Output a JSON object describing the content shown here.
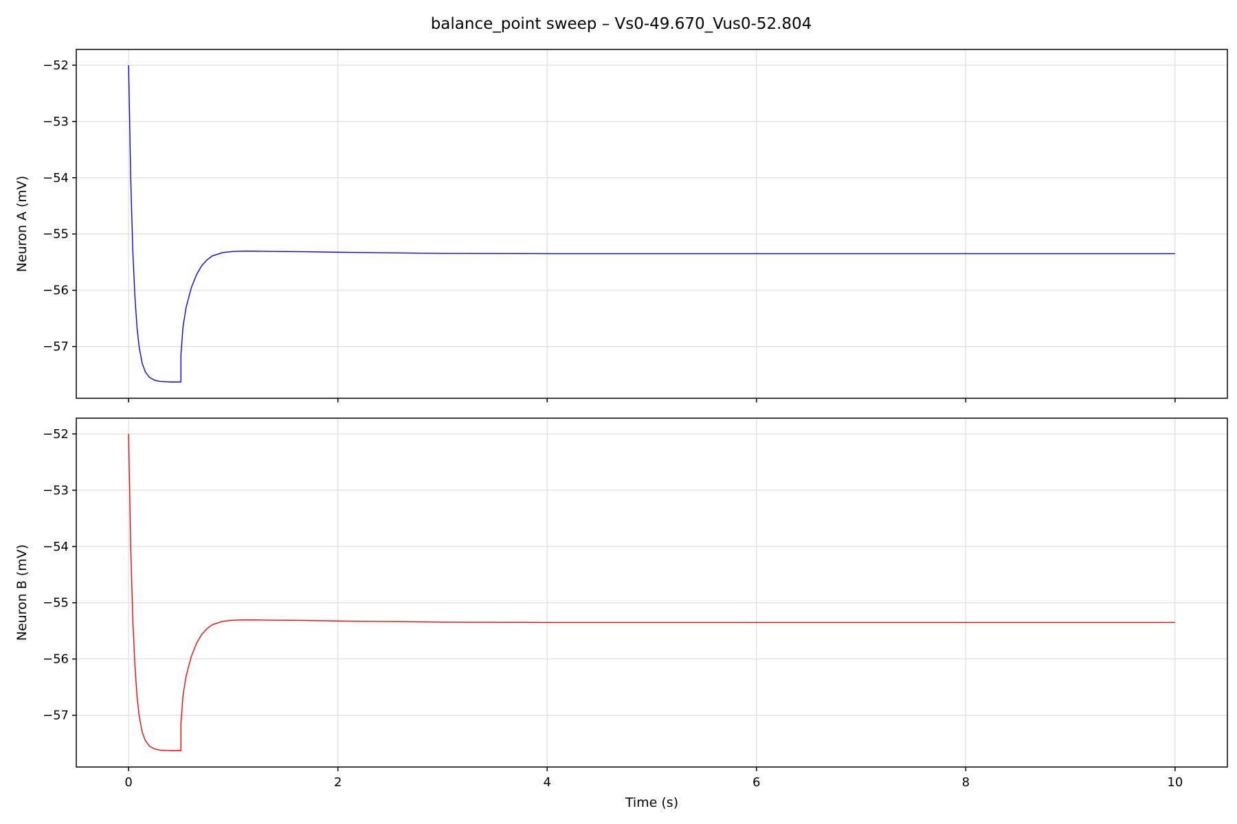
{
  "figure": {
    "title": "balance_point sweep – Vs0-49.670_Vus0-52.804"
  },
  "chart_data": [
    {
      "type": "line",
      "title": "",
      "xlabel": "",
      "ylabel": "Neuron A (mV)",
      "xlim": [
        -0.5,
        10.5
      ],
      "ylim": [
        -57.92,
        -51.72
      ],
      "x_ticks": [
        0,
        2,
        4,
        6,
        8,
        10
      ],
      "x_tick_labels": [
        "",
        "",
        "",
        "",
        "",
        ""
      ],
      "y_ticks": [
        -57,
        -56,
        -55,
        -54,
        -53,
        -52
      ],
      "y_tick_labels": [
        "−57",
        "−56",
        "−55",
        "−54",
        "−53",
        "−52"
      ],
      "grid": true,
      "series": [
        {
          "color": "#0000ff",
          "x": [
            0,
            0.02,
            0.04,
            0.06,
            0.08,
            0.1,
            0.13,
            0.16,
            0.2,
            0.25,
            0.3,
            0.35,
            0.4,
            0.45,
            0.5,
            0.5,
            0.52,
            0.55,
            0.6,
            0.65,
            0.7,
            0.75,
            0.8,
            0.9,
            1.0,
            1.1,
            1.2,
            1.4,
            1.7,
            2.0,
            2.5,
            3.0,
            4.0,
            5.0,
            6.0,
            7.0,
            8.0,
            9.0,
            10.0
          ],
          "y": [
            -52.0,
            -54.0,
            -55.3,
            -56.1,
            -56.65,
            -57.0,
            -57.3,
            -57.45,
            -57.55,
            -57.6,
            -57.62,
            -57.625,
            -57.63,
            -57.63,
            -57.63,
            -57.15,
            -56.65,
            -56.3,
            -55.95,
            -55.72,
            -55.56,
            -55.46,
            -55.39,
            -55.33,
            -55.31,
            -55.305,
            -55.305,
            -55.31,
            -55.315,
            -55.325,
            -55.335,
            -55.345,
            -55.35,
            -55.35,
            -55.35,
            -55.35,
            -55.35,
            -55.35,
            -55.35
          ]
        }
      ]
    },
    {
      "type": "line",
      "title": "",
      "xlabel": "Time (s)",
      "ylabel": "Neuron B (mV)",
      "xlim": [
        -0.5,
        10.5
      ],
      "ylim": [
        -57.92,
        -51.72
      ],
      "x_ticks": [
        0,
        2,
        4,
        6,
        8,
        10
      ],
      "x_tick_labels": [
        "0",
        "2",
        "4",
        "6",
        "8",
        "10"
      ],
      "y_ticks": [
        -57,
        -56,
        -55,
        -54,
        -53,
        -52
      ],
      "y_tick_labels": [
        "−57",
        "−56",
        "−55",
        "−54",
        "−53",
        "−52"
      ],
      "grid": true,
      "series": [
        {
          "color": "#ff0000",
          "x": [
            0,
            0.02,
            0.04,
            0.06,
            0.08,
            0.1,
            0.13,
            0.16,
            0.2,
            0.25,
            0.3,
            0.35,
            0.4,
            0.45,
            0.5,
            0.5,
            0.52,
            0.55,
            0.6,
            0.65,
            0.7,
            0.75,
            0.8,
            0.9,
            1.0,
            1.1,
            1.2,
            1.4,
            1.7,
            2.0,
            2.5,
            3.0,
            4.0,
            5.0,
            6.0,
            7.0,
            8.0,
            9.0,
            10.0
          ],
          "y": [
            -52.0,
            -54.0,
            -55.3,
            -56.1,
            -56.65,
            -57.0,
            -57.3,
            -57.45,
            -57.55,
            -57.6,
            -57.62,
            -57.625,
            -57.63,
            -57.63,
            -57.63,
            -57.15,
            -56.65,
            -56.3,
            -55.95,
            -55.72,
            -55.56,
            -55.46,
            -55.39,
            -55.33,
            -55.31,
            -55.305,
            -55.305,
            -55.31,
            -55.315,
            -55.325,
            -55.335,
            -55.345,
            -55.35,
            -55.35,
            -55.35,
            -55.35,
            -55.35,
            -55.35,
            -55.35
          ]
        }
      ]
    }
  ]
}
